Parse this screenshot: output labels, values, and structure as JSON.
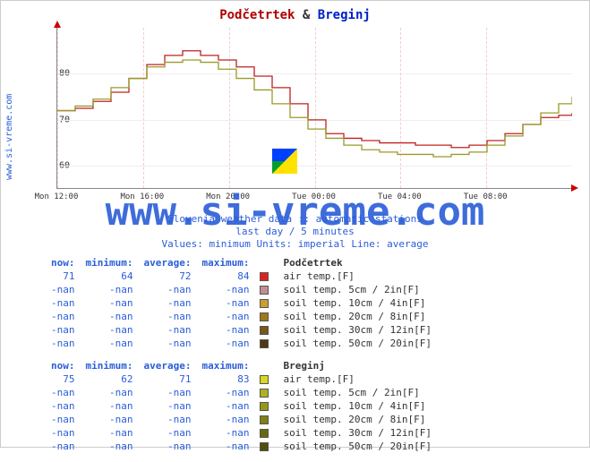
{
  "sidebar_label": "www.si-vreme.com",
  "title": {
    "loc1": "Podčetrtek",
    "amp": "&",
    "loc2": "Breginj"
  },
  "watermark": "www.si-vreme.com",
  "subtitle1": "Slovenia weather data :: automatic stations",
  "subtitle2": "last day / 5 minutes",
  "subtitle3": "Values: minimum   Units: imperial   Line: average",
  "chart": {
    "yticks": [
      {
        "v": 60,
        "lbl": "60"
      },
      {
        "v": 70,
        "lbl": "70"
      },
      {
        "v": 80,
        "lbl": "80"
      }
    ],
    "ymin": 55,
    "ymax": 90,
    "xticks": [
      "Mon 12:00",
      "Mon 16:00",
      "Mon 20:00",
      "Tue 00:00",
      "Tue 04:00",
      "Tue 08:00"
    ],
    "grid_color": "#f0e8e8",
    "series": [
      {
        "color": "#c02020",
        "width": 1.3,
        "points": [
          [
            0,
            72
          ],
          [
            20,
            72.5
          ],
          [
            40,
            74
          ],
          [
            60,
            76
          ],
          [
            80,
            79
          ],
          [
            100,
            82
          ],
          [
            120,
            84
          ],
          [
            140,
            85
          ],
          [
            160,
            84
          ],
          [
            180,
            83
          ],
          [
            200,
            81.5
          ],
          [
            220,
            79.5
          ],
          [
            240,
            77
          ],
          [
            260,
            73.5
          ],
          [
            280,
            70
          ],
          [
            300,
            67
          ],
          [
            320,
            66
          ],
          [
            340,
            65.5
          ],
          [
            360,
            65
          ],
          [
            380,
            65
          ],
          [
            400,
            64.5
          ],
          [
            420,
            64.5
          ],
          [
            440,
            64
          ],
          [
            460,
            64.5
          ],
          [
            480,
            65.5
          ],
          [
            500,
            67
          ],
          [
            520,
            69
          ],
          [
            540,
            70.5
          ],
          [
            560,
            71
          ],
          [
            575,
            71.5
          ]
        ]
      },
      {
        "color": "#9a9a2a",
        "width": 1.3,
        "points": [
          [
            0,
            72
          ],
          [
            20,
            73
          ],
          [
            40,
            74.5
          ],
          [
            60,
            77
          ],
          [
            80,
            79
          ],
          [
            100,
            81.5
          ],
          [
            120,
            82.5
          ],
          [
            140,
            83
          ],
          [
            160,
            82.5
          ],
          [
            180,
            81
          ],
          [
            200,
            79
          ],
          [
            220,
            76.5
          ],
          [
            240,
            73.5
          ],
          [
            260,
            70.5
          ],
          [
            280,
            68
          ],
          [
            300,
            66
          ],
          [
            320,
            64.5
          ],
          [
            340,
            63.5
          ],
          [
            360,
            63
          ],
          [
            380,
            62.5
          ],
          [
            400,
            62.5
          ],
          [
            420,
            62
          ],
          [
            440,
            62.5
          ],
          [
            460,
            63
          ],
          [
            480,
            64.5
          ],
          [
            500,
            66.5
          ],
          [
            520,
            69
          ],
          [
            540,
            71.5
          ],
          [
            560,
            73.5
          ],
          [
            575,
            75
          ]
        ]
      }
    ]
  },
  "tables": [
    {
      "location": "Podčetrtek",
      "headers": [
        "now:",
        "minimum:",
        "average:",
        "maximum:"
      ],
      "rows": [
        {
          "now": "71",
          "min": "64",
          "avg": "72",
          "max": "84",
          "color": "#e02020",
          "name": "air temp.[F]"
        },
        {
          "now": "-nan",
          "min": "-nan",
          "avg": "-nan",
          "max": "-nan",
          "color": "#c09090",
          "name": "soil temp. 5cm / 2in[F]"
        },
        {
          "now": "-nan",
          "min": "-nan",
          "avg": "-nan",
          "max": "-nan",
          "color": "#c8a030",
          "name": "soil temp. 10cm / 4in[F]"
        },
        {
          "now": "-nan",
          "min": "-nan",
          "avg": "-nan",
          "max": "-nan",
          "color": "#a07820",
          "name": "soil temp. 20cm / 8in[F]"
        },
        {
          "now": "-nan",
          "min": "-nan",
          "avg": "-nan",
          "max": "-nan",
          "color": "#7a5818",
          "name": "soil temp. 30cm / 12in[F]"
        },
        {
          "now": "-nan",
          "min": "-nan",
          "avg": "-nan",
          "max": "-nan",
          "color": "#503810",
          "name": "soil temp. 50cm / 20in[F]"
        }
      ]
    },
    {
      "location": "Breginj",
      "headers": [
        "now:",
        "minimum:",
        "average:",
        "maximum:"
      ],
      "rows": [
        {
          "now": "75",
          "min": "62",
          "avg": "71",
          "max": "83",
          "color": "#d8d820",
          "name": "air temp.[F]"
        },
        {
          "now": "-nan",
          "min": "-nan",
          "avg": "-nan",
          "max": "-nan",
          "color": "#b0b020",
          "name": "soil temp. 5cm / 2in[F]"
        },
        {
          "now": "-nan",
          "min": "-nan",
          "avg": "-nan",
          "max": "-nan",
          "color": "#989818",
          "name": "soil temp. 10cm / 4in[F]"
        },
        {
          "now": "-nan",
          "min": "-nan",
          "avg": "-nan",
          "max": "-nan",
          "color": "#808014",
          "name": "soil temp. 20cm / 8in[F]"
        },
        {
          "now": "-nan",
          "min": "-nan",
          "avg": "-nan",
          "max": "-nan",
          "color": "#686810",
          "name": "soil temp. 30cm / 12in[F]"
        },
        {
          "now": "-nan",
          "min": "-nan",
          "avg": "-nan",
          "max": "-nan",
          "color": "#50500c",
          "name": "soil temp. 50cm / 20in[F]"
        }
      ]
    }
  ]
}
